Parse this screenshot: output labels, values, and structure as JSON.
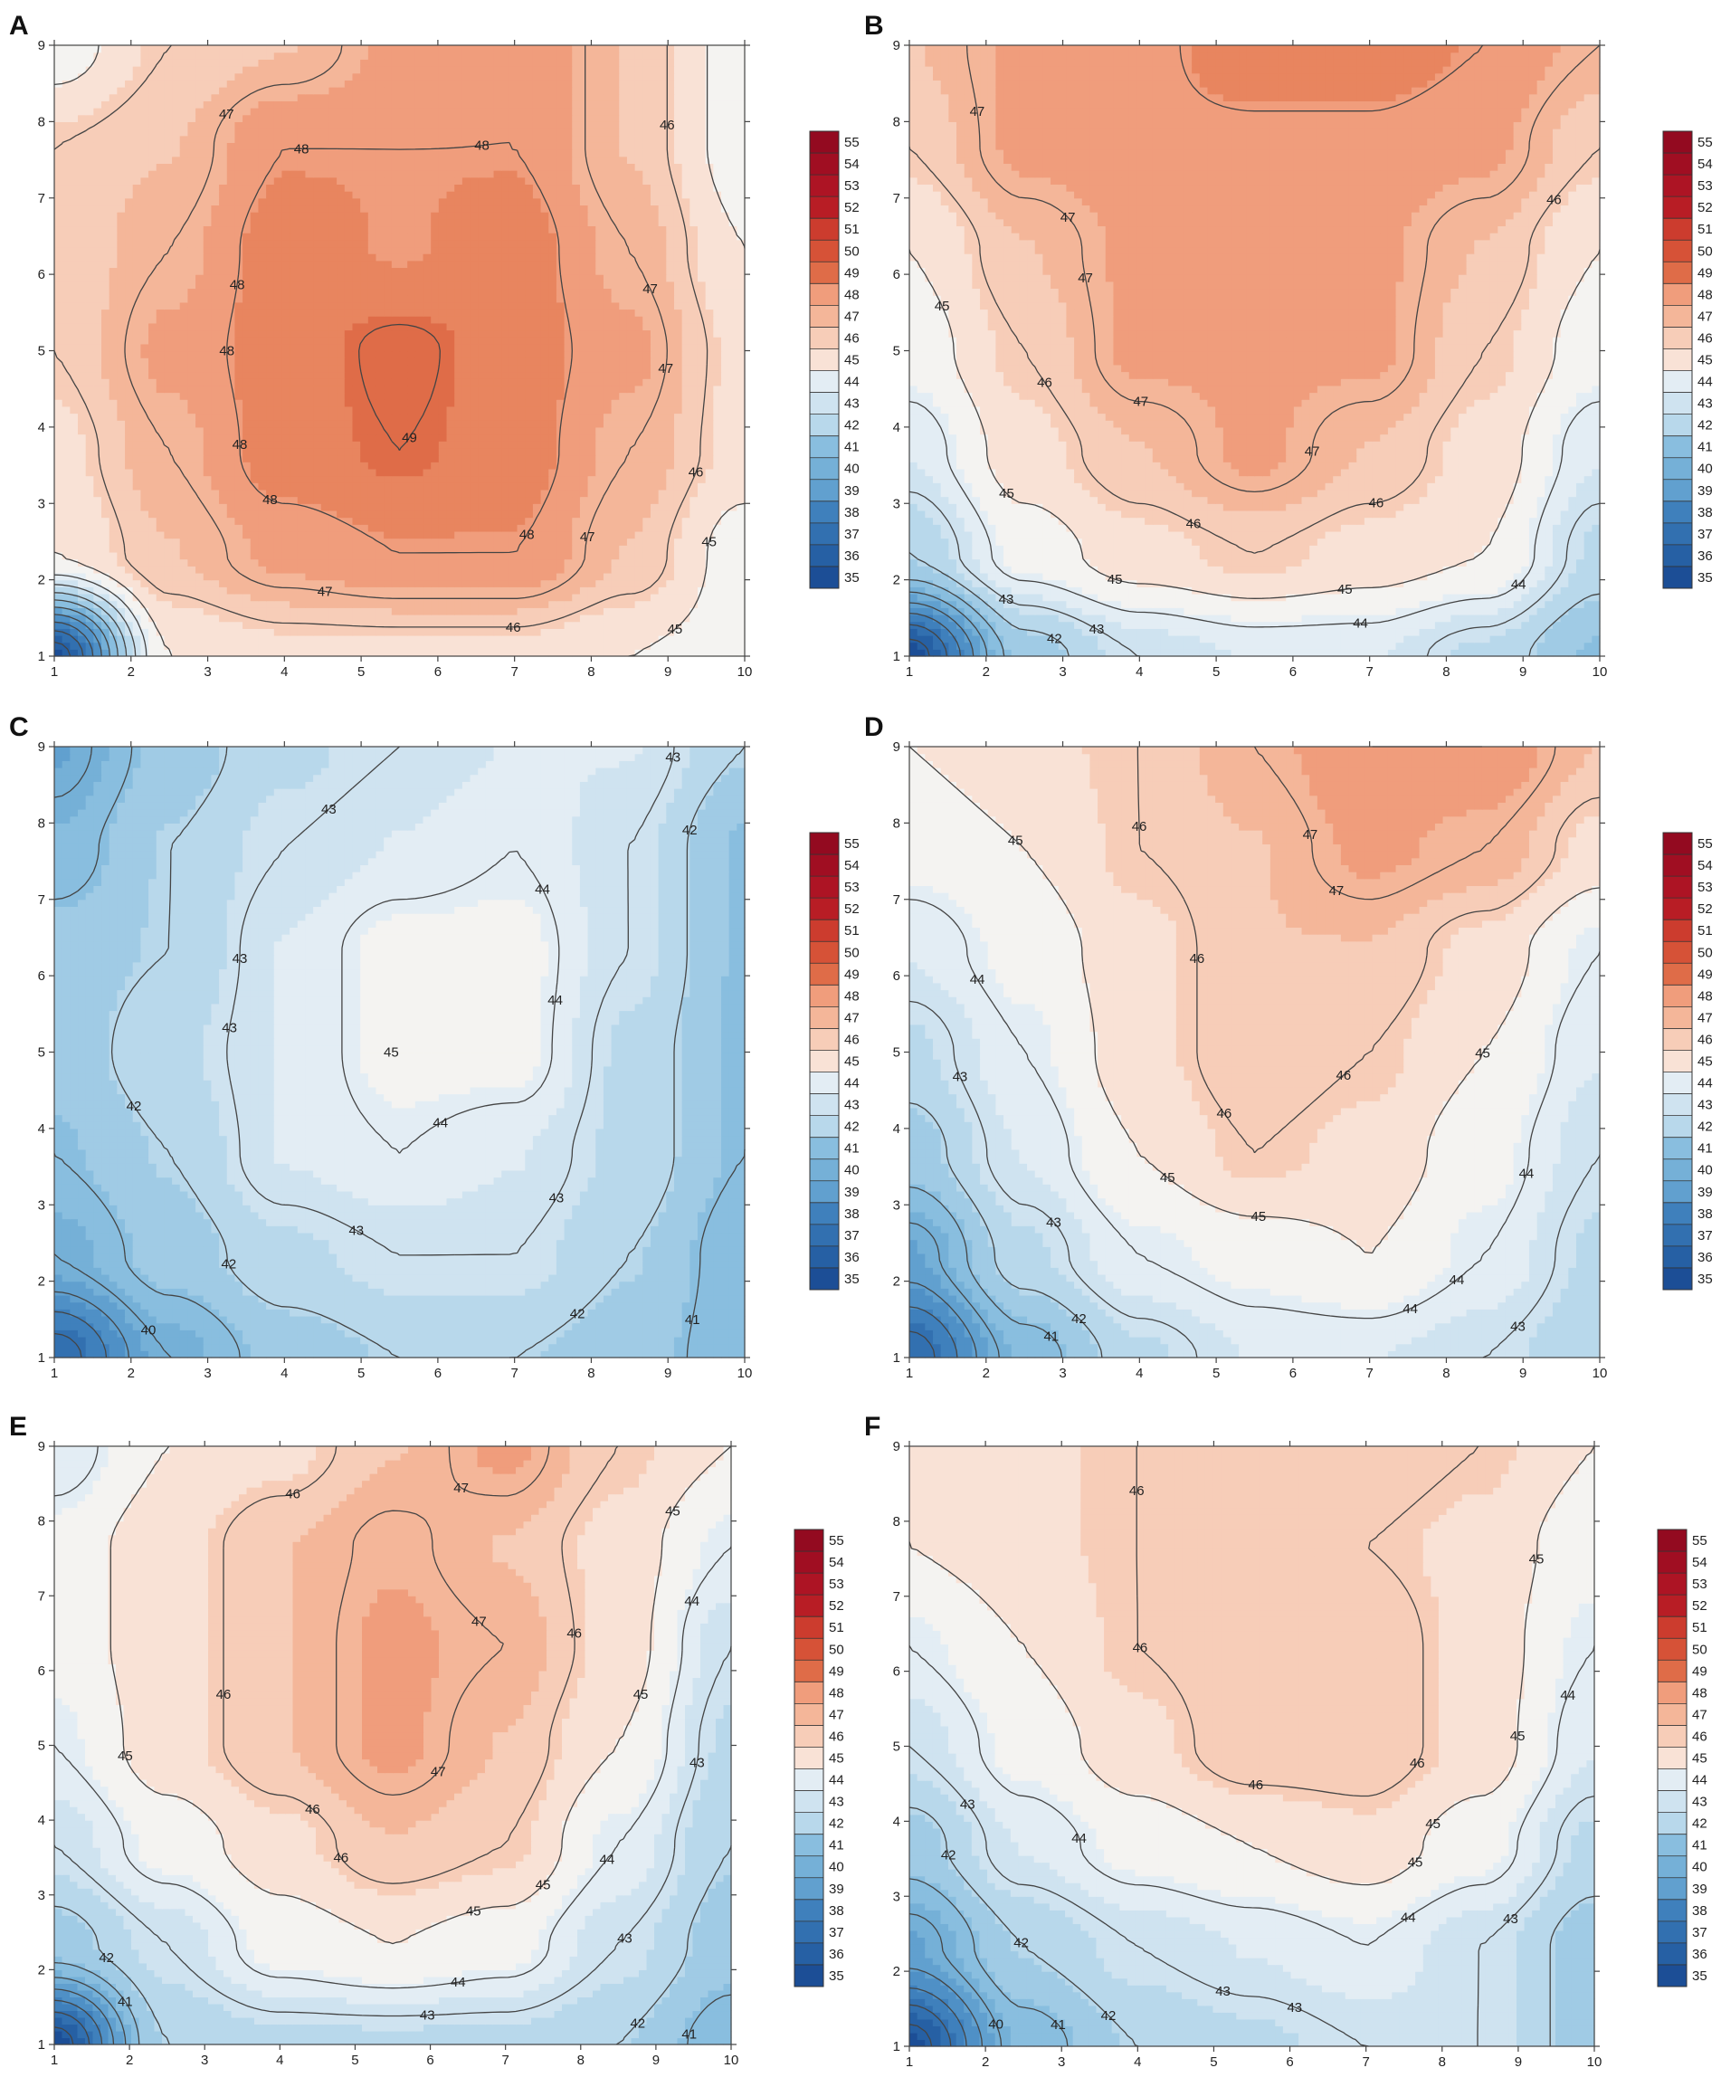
{
  "figure": {
    "colors": {
      "scale": [
        "#1c4e96",
        "#2660a4",
        "#3270b0",
        "#3f80bc",
        "#4f90c6",
        "#61a0cf",
        "#75b0d7",
        "#89bedf",
        "#a0cbe5",
        "#b8d8eb",
        "#cfe3f0",
        "#e3edf4",
        "#f4f3f1",
        "#f9e2d6",
        "#f7cdb8",
        "#f4b699",
        "#f09d7c",
        "#e8855f",
        "#df6c48",
        "#d65237",
        "#cc3c2e",
        "#c12727",
        "#b81d25",
        "#ad1424",
        "#a00e22",
        "#930a20"
      ],
      "contour_line": "#444444"
    },
    "colorbar_labels": [
      "55",
      "54",
      "53",
      "52",
      "51",
      "50",
      "49",
      "48",
      "47",
      "46",
      "45",
      "44",
      "43",
      "42",
      "41",
      "40",
      "39",
      "38",
      "37",
      "36",
      "35"
    ],
    "x_ticks": [
      "1",
      "2",
      "3",
      "4",
      "5",
      "6",
      "7",
      "8",
      "9",
      "10"
    ],
    "y_ticks": [
      "1",
      "2",
      "3",
      "4",
      "5",
      "6",
      "7",
      "8",
      "9"
    ]
  },
  "chart_data": [
    {
      "panel": "A",
      "type": "heatmap",
      "subtype": "filled-contour",
      "title": "",
      "xlabel": "",
      "ylabel": "",
      "xlim": [
        1,
        10
      ],
      "ylim": [
        1,
        9
      ],
      "colorbar_range": [
        35,
        55
      ],
      "x": [
        1,
        2.5,
        4,
        5.5,
        7,
        8.5,
        10
      ],
      "y": [
        1,
        2.33,
        3.67,
        5,
        6.33,
        7.67,
        9
      ],
      "z": [
        [
          35.5,
          45.0,
          45.5,
          45.5,
          45.5,
          45.0,
          44.5
        ],
        [
          45.0,
          46.5,
          47.5,
          48.0,
          48.0,
          46.5,
          44.5
        ],
        [
          45.5,
          47.0,
          48.5,
          49.0,
          48.5,
          47.0,
          45.5
        ],
        [
          46.0,
          47.5,
          48.5,
          49.2,
          48.5,
          47.5,
          45.5
        ],
        [
          46.0,
          47.0,
          48.5,
          48.0,
          48.5,
          47.0,
          45.0
        ],
        [
          46.0,
          46.5,
          48.0,
          48.0,
          48.0,
          46.5,
          44.5
        ],
        [
          44.5,
          46.0,
          46.5,
          47.5,
          48.0,
          46.5,
          44.5
        ]
      ],
      "contour_labels": [
        "45",
        "46",
        "47",
        "47",
        "48",
        "48",
        "48",
        "48",
        "48",
        "48",
        "49",
        "47",
        "47",
        "47",
        "46",
        "46",
        "45",
        "48"
      ]
    },
    {
      "panel": "B",
      "type": "heatmap",
      "subtype": "filled-contour",
      "title": "",
      "xlabel": "",
      "ylabel": "",
      "xlim": [
        1,
        10
      ],
      "ylim": [
        1,
        9
      ],
      "colorbar_range": [
        35,
        55
      ],
      "x": [
        1,
        2.5,
        4,
        5.5,
        7,
        8.5,
        10
      ],
      "y": [
        1,
        2.33,
        3.67,
        5,
        6.33,
        7.67,
        9
      ],
      "z": [
        [
          35.5,
          41.5,
          43.0,
          43.5,
          43.5,
          42.5,
          41.0
        ],
        [
          42.0,
          44.5,
          45.5,
          46.0,
          45.5,
          45.0,
          42.5
        ],
        [
          43.5,
          45.5,
          46.5,
          47.5,
          46.5,
          45.5,
          43.5
        ],
        [
          44.5,
          46.0,
          47.5,
          47.5,
          47.5,
          46.0,
          44.5
        ],
        [
          45.0,
          46.5,
          47.5,
          47.5,
          47.5,
          46.5,
          45.0
        ],
        [
          46.0,
          47.5,
          47.8,
          47.8,
          47.8,
          47.5,
          46.0
        ],
        [
          46.5,
          47.5,
          47.8,
          48.5,
          48.5,
          48.0,
          47.0
        ]
      ],
      "contour_labels": [
        "42",
        "43",
        "44",
        "45",
        "45",
        "45",
        "46",
        "46",
        "46",
        "46",
        "47",
        "47",
        "47",
        "47",
        "47",
        "44",
        "45",
        "43"
      ]
    },
    {
      "panel": "C",
      "type": "heatmap",
      "subtype": "filled-contour",
      "title": "",
      "xlabel": "",
      "ylabel": "",
      "xlim": [
        1,
        10
      ],
      "ylim": [
        1,
        9
      ],
      "colorbar_range": [
        35,
        55
      ],
      "x": [
        1,
        2.5,
        4,
        5.5,
        7,
        8.5,
        10
      ],
      "y": [
        1,
        2.33,
        3.67,
        5,
        6.33,
        7.67,
        9
      ],
      "z": [
        [
          36.5,
          40.0,
          41.5,
          42.0,
          42.0,
          41.5,
          40.5
        ],
        [
          40.0,
          41.5,
          42.5,
          43.0,
          43.0,
          42.0,
          40.5
        ],
        [
          41.0,
          42.0,
          43.5,
          44.0,
          43.5,
          42.5,
          41.0
        ],
        [
          41.5,
          42.5,
          43.5,
          44.5,
          44.5,
          42.5,
          41.0
        ],
        [
          41.5,
          42.0,
          43.5,
          44.5,
          44.5,
          43.0,
          41.0
        ],
        [
          40.5,
          42.0,
          43.0,
          43.5,
          44.0,
          43.0,
          41.0
        ],
        [
          39.5,
          41.5,
          42.5,
          43.0,
          43.5,
          43.5,
          42.0
        ]
      ],
      "contour_labels": [
        "40",
        "41",
        "42",
        "43",
        "42",
        "43",
        "42",
        "43",
        "43",
        "43",
        "44",
        "44",
        "45",
        "44",
        "43",
        "42"
      ]
    },
    {
      "panel": "D",
      "type": "heatmap",
      "subtype": "filled-contour",
      "title": "",
      "xlabel": "",
      "ylabel": "",
      "xlim": [
        1,
        10
      ],
      "ylim": [
        1,
        9
      ],
      "colorbar_range": [
        35,
        55
      ],
      "x": [
        1,
        2.5,
        4,
        5.5,
        7,
        8.5,
        10
      ],
      "y": [
        1,
        2.33,
        3.67,
        5,
        6.33,
        7.67,
        9
      ],
      "z": [
        [
          36.5,
          40.5,
          42.5,
          43.5,
          43.5,
          43.0,
          42.0
        ],
        [
          39.5,
          42.5,
          44.0,
          44.5,
          45.0,
          44.0,
          42.5
        ],
        [
          41.5,
          43.5,
          45.0,
          46.0,
          45.5,
          44.5,
          43.0
        ],
        [
          42.5,
          44.0,
          45.5,
          46.5,
          46.0,
          45.0,
          43.5
        ],
        [
          43.5,
          44.5,
          45.5,
          46.5,
          46.5,
          45.5,
          44.0
        ],
        [
          44.5,
          45.0,
          46.0,
          46.5,
          47.5,
          47.0,
          45.5
        ],
        [
          45.0,
          45.5,
          46.0,
          47.0,
          48.0,
          48.0,
          46.5
        ]
      ],
      "contour_labels": [
        "41",
        "42",
        "43",
        "43",
        "44",
        "44",
        "44",
        "45",
        "45",
        "45",
        "46",
        "46",
        "46",
        "47",
        "47",
        "46",
        "45",
        "44",
        "43"
      ]
    },
    {
      "panel": "E",
      "type": "heatmap",
      "subtype": "filled-contour",
      "title": "",
      "xlabel": "",
      "ylabel": "",
      "xlim": [
        1,
        10
      ],
      "ylim": [
        1,
        9
      ],
      "colorbar_range": [
        35,
        55
      ],
      "x": [
        1,
        2.5,
        4,
        5.5,
        7,
        8.5,
        10
      ],
      "y": [
        1,
        2.33,
        3.67,
        5,
        6.33,
        7.67,
        9
      ],
      "z": [
        [
          35.5,
          42.0,
          42.5,
          42.5,
          42.5,
          42.0,
          40.5
        ],
        [
          41.5,
          43.0,
          44.5,
          45.0,
          44.5,
          43.0,
          41.5
        ],
        [
          43.0,
          44.5,
          45.5,
          46.5,
          46.0,
          44.0,
          42.0
        ],
        [
          44.0,
          45.5,
          46.5,
          47.5,
          46.5,
          45.0,
          42.5
        ],
        [
          44.5,
          45.5,
          46.5,
          47.5,
          47.0,
          45.5,
          43.0
        ],
        [
          44.5,
          45.5,
          46.5,
          47.2,
          46.5,
          45.5,
          44.0
        ],
        [
          43.5,
          45.0,
          45.5,
          46.5,
          47.5,
          46.0,
          45.0
        ]
      ],
      "contour_labels": [
        "41",
        "42",
        "43",
        "44",
        "44",
        "45",
        "45",
        "45",
        "46",
        "46",
        "46",
        "46",
        "47",
        "47",
        "47",
        "46",
        "45",
        "45",
        "44",
        "43",
        "43",
        "42",
        "41"
      ]
    },
    {
      "panel": "F",
      "type": "heatmap",
      "subtype": "filled-contour",
      "title": "",
      "xlabel": "",
      "ylabel": "",
      "xlim": [
        1,
        10
      ],
      "ylim": [
        1,
        9
      ],
      "colorbar_range": [
        35,
        55
      ],
      "x": [
        1,
        2.5,
        4,
        5.5,
        7,
        8.5,
        10
      ],
      "y": [
        1,
        2.33,
        3.67,
        5,
        6.33,
        7.67,
        9
      ],
      "z": [
        [
          35.5,
          40.5,
          42.0,
          42.5,
          43.0,
          43.0,
          41.5
        ],
        [
          39.5,
          42.0,
          43.0,
          43.5,
          44.0,
          43.0,
          41.5
        ],
        [
          41.5,
          43.5,
          44.5,
          45.0,
          45.5,
          44.5,
          42.5
        ],
        [
          43.0,
          44.5,
          45.5,
          46.5,
          46.5,
          45.5,
          43.5
        ],
        [
          44.0,
          45.0,
          46.0,
          46.5,
          46.5,
          45.5,
          44.0
        ],
        [
          45.0,
          45.5,
          46.0,
          46.5,
          46.0,
          45.5,
          44.5
        ],
        [
          45.0,
          45.5,
          46.0,
          46.5,
          46.5,
          46.0,
          45.0
        ]
      ],
      "contour_labels": [
        "40",
        "41",
        "42",
        "42",
        "43",
        "43",
        "43",
        "44",
        "44",
        "45",
        "45",
        "45",
        "46",
        "46",
        "46",
        "46",
        "45",
        "44",
        "43",
        "42"
      ]
    }
  ]
}
